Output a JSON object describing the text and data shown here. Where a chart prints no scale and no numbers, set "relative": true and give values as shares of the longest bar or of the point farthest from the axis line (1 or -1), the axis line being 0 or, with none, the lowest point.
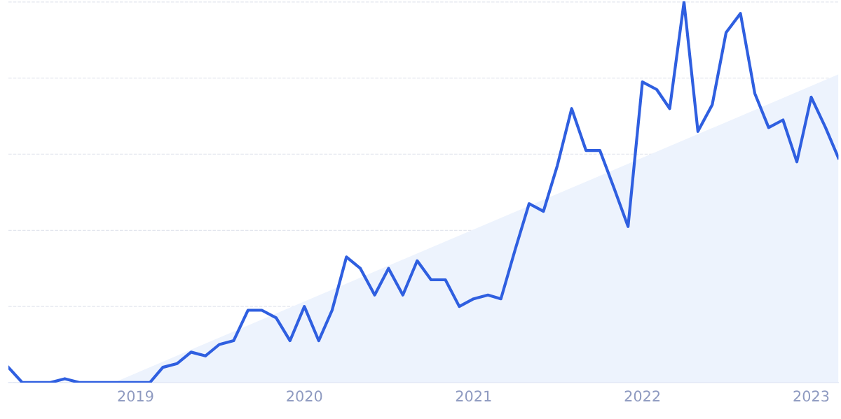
{
  "chart_data": {
    "type": "line",
    "relative": true,
    "grid": "y",
    "legend": false,
    "marker": "none",
    "line_style": "solid",
    "xlim": [
      "2018-04",
      "2023-03"
    ],
    "xticks": [
      "2019",
      "2020",
      "2021",
      "2022",
      "2023"
    ],
    "series": [
      {
        "type": "area",
        "color": "#edf3fd",
        "x": [
          "2018-11-15",
          "2023-03"
        ],
        "values": [
          0,
          0.81
        ]
      },
      {
        "color": "#2f5fe0",
        "x": [
          "2018-04",
          "2018-05",
          "2018-06",
          "2018-07",
          "2018-08",
          "2018-09",
          "2018-10",
          "2018-11",
          "2018-12",
          "2019-01",
          "2019-02",
          "2019-03",
          "2019-04",
          "2019-05",
          "2019-06",
          "2019-07",
          "2019-08",
          "2019-09",
          "2019-10",
          "2019-11",
          "2019-12",
          "2020-01",
          "2020-02",
          "2020-03",
          "2020-04",
          "2020-05",
          "2020-06",
          "2020-07",
          "2020-08",
          "2020-09",
          "2020-10",
          "2020-11",
          "2020-12",
          "2021-01",
          "2021-02",
          "2021-03",
          "2021-04",
          "2021-05",
          "2021-06",
          "2021-07",
          "2021-08",
          "2021-09",
          "2021-10",
          "2021-11",
          "2021-12",
          "2022-01",
          "2022-02",
          "2022-03",
          "2022-04",
          "2022-05",
          "2022-06",
          "2022-07",
          "2022-08",
          "2022-09",
          "2022-10",
          "2022-11",
          "2022-12",
          "2023-01",
          "2023-02",
          "2023-03"
        ],
        "values": [
          0.04,
          0,
          0,
          0,
          0.01,
          0,
          0,
          0,
          0,
          0,
          0,
          0.04,
          0.05,
          0.08,
          0.07,
          0.1,
          0.11,
          0.19,
          0.19,
          0.17,
          0.11,
          0.2,
          0.11,
          0.19,
          0.33,
          0.3,
          0.23,
          0.3,
          0.23,
          0.32,
          0.27,
          0.27,
          0.2,
          0.22,
          0.23,
          0.22,
          0.35,
          0.47,
          0.45,
          0.57,
          0.72,
          0.61,
          0.61,
          0.51,
          0.41,
          0.79,
          0.77,
          0.72,
          1,
          0.66,
          0.73,
          0.92,
          0.97,
          0.76,
          0.67,
          0.69,
          0.58,
          0.75,
          0.67,
          0.59
        ]
      }
    ]
  }
}
